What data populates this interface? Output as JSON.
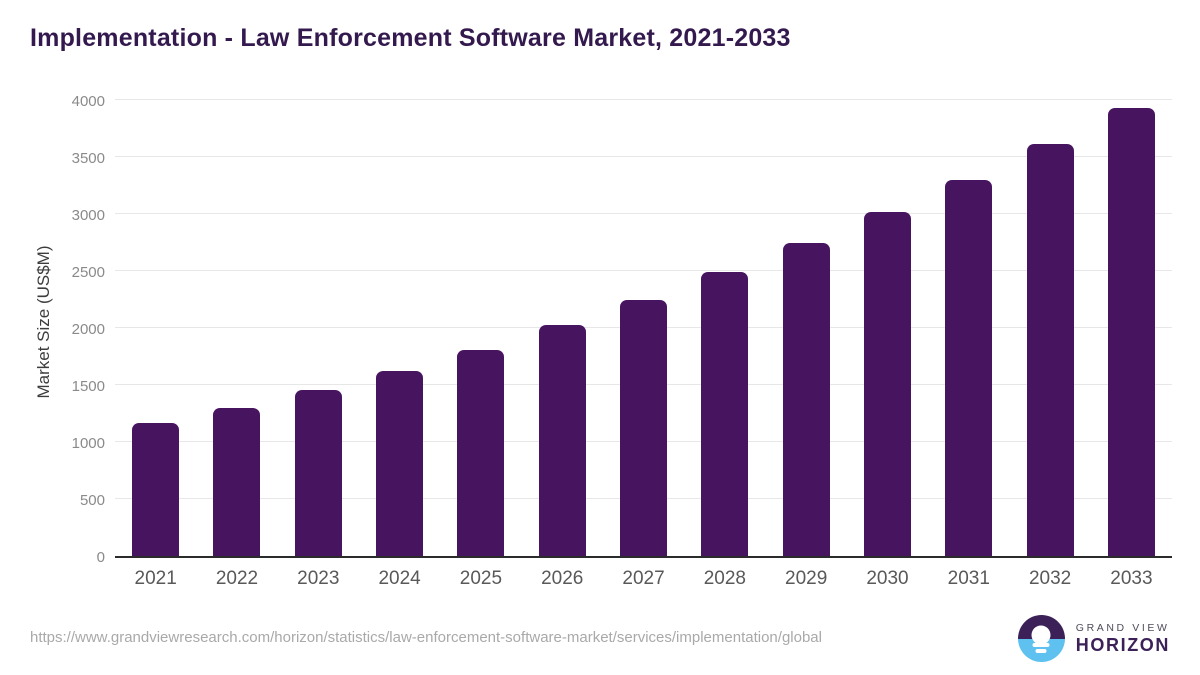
{
  "title": "Implementation - Law Enforcement Software Market, 2021-2033",
  "chart_data": {
    "type": "bar",
    "title": "Implementation - Law Enforcement Software Market, 2021-2033",
    "categories": [
      "2021",
      "2022",
      "2023",
      "2024",
      "2025",
      "2026",
      "2027",
      "2028",
      "2029",
      "2030",
      "2031",
      "2032",
      "2033"
    ],
    "values": [
      1165,
      1300,
      1455,
      1625,
      1810,
      2025,
      2245,
      2490,
      2745,
      3020,
      3300,
      3610,
      3930
    ],
    "xlabel": "",
    "ylabel": "Market Size (US$M)",
    "ylim": [
      0,
      4000
    ],
    "ytick_step": 500,
    "yticks": [
      0,
      500,
      1000,
      1500,
      2000,
      2500,
      3000,
      3500,
      4000
    ],
    "grid": true,
    "legend": "none",
    "bar_color": "#471460"
  },
  "colors": {
    "title_text": "#33194e",
    "bar": "#471460",
    "axis_line": "#2b2b2b",
    "gridline": "#e7e7e7",
    "tick_text": "#8a8a8a",
    "xlabel_text": "#595959",
    "url_text": "#a9a9a9",
    "logo_purple": "#3b2157",
    "logo_blue": "#5ec1ef"
  },
  "footer": {
    "source_url": "https://www.grandviewresearch.com/horizon/statistics/law-enforcement-software-market/services/implementation/global",
    "logo": {
      "brand_top": "GRAND VIEW",
      "brand_bottom": "HORIZON"
    }
  }
}
